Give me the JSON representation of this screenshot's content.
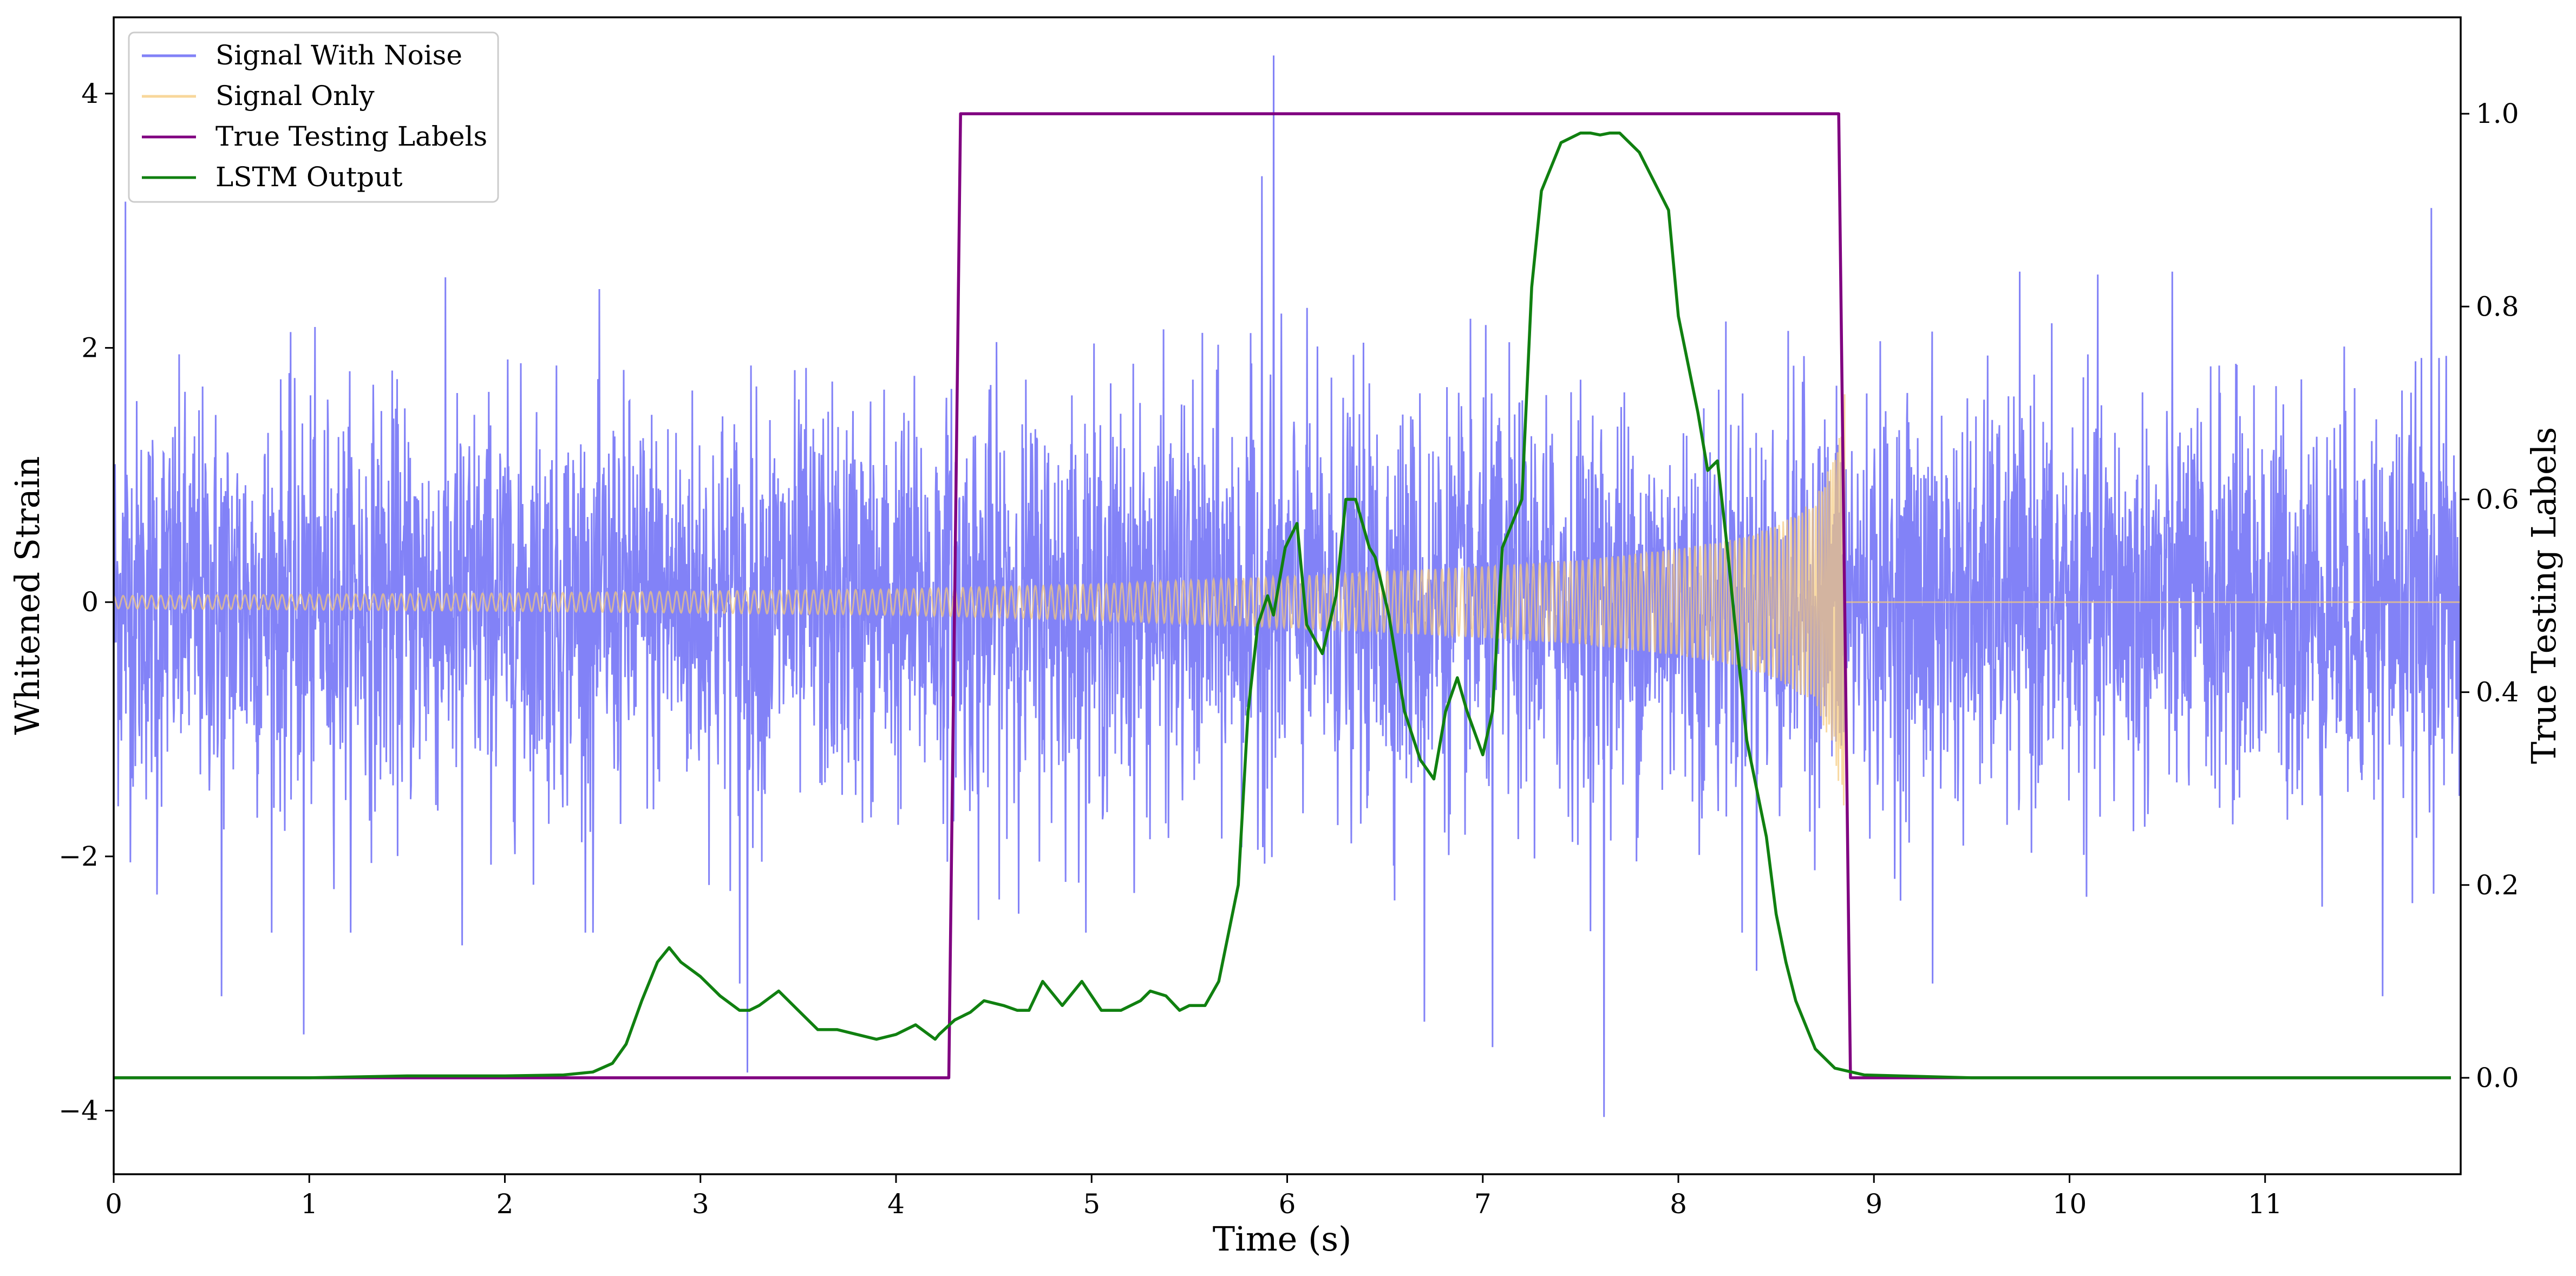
{
  "chart_data": {
    "type": "line",
    "xlabel": "Time (s)",
    "ylabel": "Whitened Strain",
    "y2label": "True Testing Labels",
    "xlim": [
      0,
      12.0
    ],
    "ylim": [
      -4.5,
      4.6
    ],
    "y2lim": [
      -0.1,
      1.1
    ],
    "xticks": [
      0,
      1,
      2,
      3,
      4,
      5,
      6,
      7,
      8,
      9,
      10,
      11
    ],
    "yticks": [
      -4,
      -2,
      0,
      2,
      4
    ],
    "y2ticks": [
      0.0,
      0.2,
      0.4,
      0.6,
      0.8,
      1.0
    ],
    "xtick_labels": [
      "0",
      "1",
      "2",
      "3",
      "4",
      "5",
      "6",
      "7",
      "8",
      "9",
      "10",
      "11"
    ],
    "ytick_labels": [
      "−4",
      "−2",
      "0",
      "2",
      "4"
    ],
    "y2tick_labels": [
      "0.0",
      "0.2",
      "0.4",
      "0.6",
      "0.8",
      "1.0"
    ],
    "grid": false,
    "legend_position": "top-left",
    "series": [
      {
        "name": "Signal With Noise",
        "axis": "left",
        "color": "#7b7bf7",
        "noise_envelope": {
          "typical_amplitude": 1.3,
          "max": 4.3,
          "min": -4.05
        },
        "spikes": [
          [
            0.06,
            3.15
          ],
          [
            0.22,
            -2.3
          ],
          [
            0.55,
            -3.1
          ],
          [
            0.97,
            -3.4
          ],
          [
            1.78,
            -2.7
          ],
          [
            2.45,
            -2.6
          ],
          [
            3.2,
            -3.0
          ],
          [
            3.24,
            -3.7
          ],
          [
            4.42,
            -2.5
          ],
          [
            5.93,
            4.3
          ],
          [
            5.87,
            3.35
          ],
          [
            6.7,
            -3.3
          ],
          [
            7.05,
            -3.5
          ],
          [
            7.62,
            -4.05
          ],
          [
            8.4,
            -2.9
          ],
          [
            9.3,
            -3.0
          ],
          [
            11.6,
            -3.1
          ],
          [
            11.85,
            3.1
          ]
        ]
      },
      {
        "name": "Signal Only",
        "axis": "left",
        "color": "#f5c97a",
        "chirp_envelope": [
          [
            0.0,
            0.05
          ],
          [
            2.0,
            0.07
          ],
          [
            4.0,
            0.1
          ],
          [
            5.0,
            0.14
          ],
          [
            6.0,
            0.2
          ],
          [
            7.0,
            0.28
          ],
          [
            7.5,
            0.33
          ],
          [
            8.0,
            0.42
          ],
          [
            8.3,
            0.5
          ],
          [
            8.5,
            0.6
          ],
          [
            8.7,
            0.8
          ],
          [
            8.8,
            1.2
          ],
          [
            8.84,
            1.65
          ]
        ],
        "merger_time": 8.85,
        "after_merger": 0.0
      },
      {
        "name": "True Testing Labels",
        "axis": "right",
        "color": "#800080",
        "x": [
          0.0,
          4.27,
          4.33,
          8.82,
          8.88,
          11.95
        ],
        "y": [
          0.0,
          0.0,
          1.0,
          1.0,
          0.0,
          0.0
        ]
      },
      {
        "name": "LSTM Output",
        "axis": "right",
        "color": "#108010",
        "x": [
          0.0,
          1.0,
          1.5,
          2.0,
          2.3,
          2.45,
          2.55,
          2.62,
          2.7,
          2.78,
          2.84,
          2.9,
          3.0,
          3.1,
          3.2,
          3.25,
          3.3,
          3.4,
          3.5,
          3.6,
          3.7,
          3.8,
          3.9,
          4.0,
          4.05,
          4.1,
          4.2,
          4.22,
          4.3,
          4.38,
          4.45,
          4.55,
          4.62,
          4.68,
          4.75,
          4.85,
          4.95,
          5.05,
          5.15,
          5.25,
          5.3,
          5.38,
          5.45,
          5.5,
          5.58,
          5.65,
          5.75,
          5.8,
          5.85,
          5.9,
          5.93,
          5.99,
          6.05,
          6.1,
          6.18,
          6.25,
          6.3,
          6.35,
          6.42,
          6.45,
          6.52,
          6.6,
          6.68,
          6.75,
          6.81,
          6.87,
          6.92,
          7.0,
          7.05,
          7.1,
          7.2,
          7.25,
          7.3,
          7.4,
          7.5,
          7.55,
          7.6,
          7.65,
          7.7,
          7.8,
          7.95,
          8.0,
          8.1,
          8.15,
          8.2,
          8.25,
          8.35,
          8.45,
          8.5,
          8.55,
          8.6,
          8.7,
          8.8,
          8.95,
          9.5,
          10.5,
          11.95
        ],
        "y": [
          0.0,
          0.0,
          0.002,
          0.002,
          0.003,
          0.006,
          0.015,
          0.035,
          0.08,
          0.12,
          0.135,
          0.12,
          0.105,
          0.085,
          0.07,
          0.07,
          0.075,
          0.09,
          0.07,
          0.05,
          0.05,
          0.045,
          0.04,
          0.045,
          0.05,
          0.055,
          0.04,
          0.045,
          0.06,
          0.068,
          0.08,
          0.075,
          0.07,
          0.07,
          0.1,
          0.075,
          0.1,
          0.07,
          0.07,
          0.08,
          0.09,
          0.085,
          0.07,
          0.075,
          0.075,
          0.1,
          0.2,
          0.38,
          0.47,
          0.5,
          0.48,
          0.55,
          0.575,
          0.47,
          0.44,
          0.5,
          0.6,
          0.6,
          0.55,
          0.54,
          0.48,
          0.38,
          0.33,
          0.31,
          0.38,
          0.415,
          0.38,
          0.335,
          0.38,
          0.55,
          0.6,
          0.82,
          0.92,
          0.97,
          0.98,
          0.98,
          0.978,
          0.98,
          0.98,
          0.96,
          0.9,
          0.79,
          0.69,
          0.63,
          0.64,
          0.55,
          0.35,
          0.25,
          0.17,
          0.12,
          0.08,
          0.03,
          0.01,
          0.003,
          0.0,
          0.0,
          0.0
        ]
      }
    ]
  }
}
